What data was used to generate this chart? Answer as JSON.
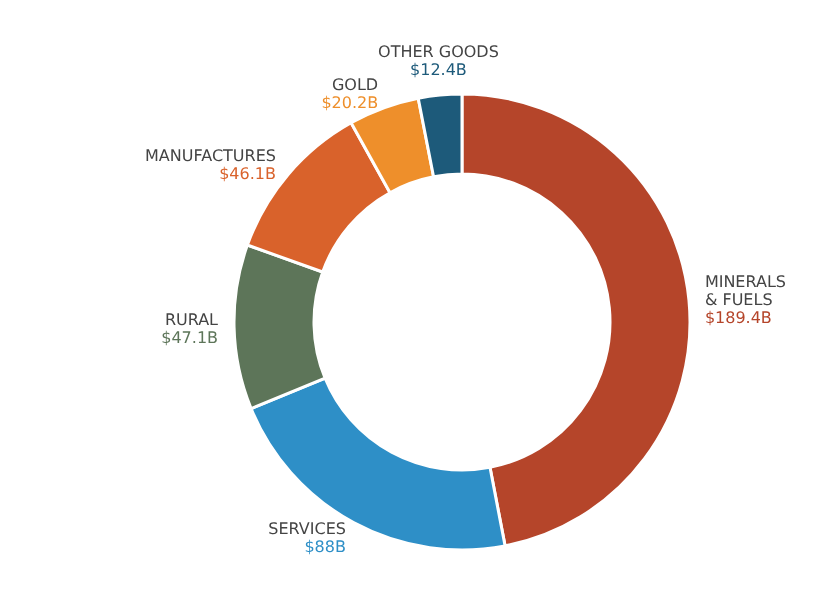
{
  "chart_data": {
    "type": "donut",
    "categories": [
      "MINERALS & FUELS",
      "SERVICES",
      "RURAL",
      "MANUFACTURES",
      "GOLD",
      "OTHER GOODS"
    ],
    "values": [
      189.4,
      88,
      47.1,
      46.1,
      20.2,
      12.4
    ],
    "value_labels": [
      "$189.4B",
      "$88B",
      "$47.1B",
      "$46.1B",
      "$20.2B",
      "$12.4B"
    ],
    "colors": [
      "#b5452a",
      "#2e8fc7",
      "#5d7559",
      "#d9622b",
      "#ee8f2b",
      "#1d5a7a"
    ]
  }
}
